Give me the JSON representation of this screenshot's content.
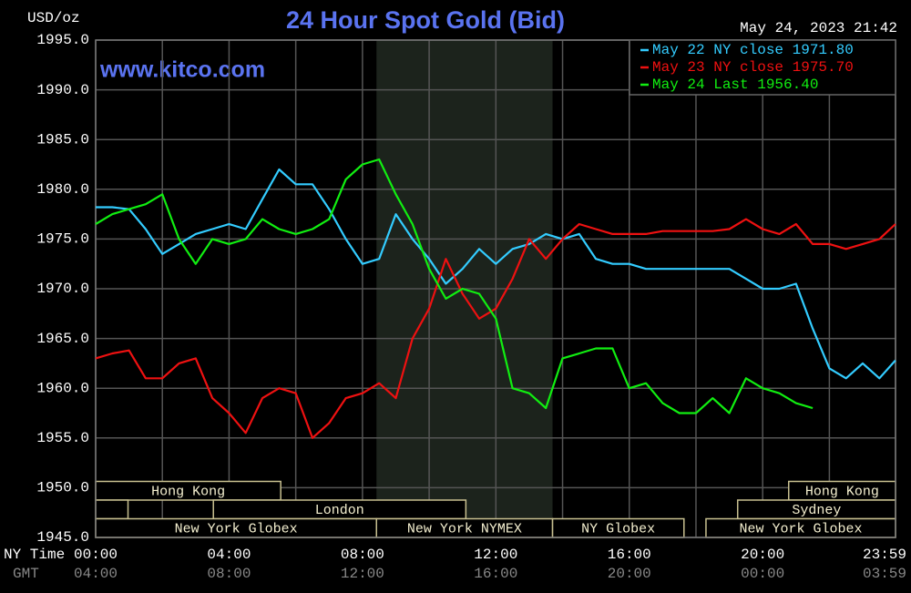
{
  "chart_data": {
    "type": "line",
    "title": "24 Hour Spot Gold (Bid)",
    "y_label": "USD/oz",
    "watermark": "www.kitco.com",
    "timestamp": "May 24, 2023 21:42",
    "x_label": "NY Time",
    "x2_label": "GMT",
    "x": [
      0,
      0.5,
      1,
      1.5,
      2,
      2.5,
      3,
      3.5,
      4,
      4.5,
      5,
      5.5,
      6,
      6.5,
      7,
      7.5,
      8,
      8.5,
      9,
      9.5,
      10,
      10.5,
      11,
      11.5,
      12,
      12.5,
      13,
      13.5,
      14,
      14.5,
      15,
      15.5,
      16,
      16.5,
      17,
      17.5,
      18,
      18.5,
      19,
      19.5,
      20,
      20.5,
      21,
      21.5,
      22,
      22.5,
      23,
      23.5,
      23.98
    ],
    "xlim": [
      0,
      23.983
    ],
    "xticks": [
      {
        "value": 0,
        "label": "00:00"
      },
      {
        "value": 4,
        "label": "04:00"
      },
      {
        "value": 8,
        "label": "08:00"
      },
      {
        "value": 12,
        "label": "12:00"
      },
      {
        "value": 16,
        "label": "16:00"
      },
      {
        "value": 20,
        "label": "20:00"
      },
      {
        "value": 23.983,
        "label": "23:59"
      }
    ],
    "x2_labels": [
      "04:00",
      "08:00",
      "12:00",
      "16:00",
      "20:00",
      "00:00",
      "03:59"
    ],
    "minor_xticks": [
      2,
      6,
      10,
      14,
      18,
      22
    ],
    "ylim": [
      1945,
      1995
    ],
    "yticks": [
      {
        "value": 1945,
        "label": "1945.0"
      },
      {
        "value": 1950,
        "label": "1950.0"
      },
      {
        "value": 1955,
        "label": "1955.0"
      },
      {
        "value": 1960,
        "label": "1960.0"
      },
      {
        "value": 1965,
        "label": "1965.0"
      },
      {
        "value": 1970,
        "label": "1970.0"
      },
      {
        "value": 1975,
        "label": "1975.0"
      },
      {
        "value": 1980,
        "label": "1980.0"
      },
      {
        "value": 1985,
        "label": "1985.0"
      },
      {
        "value": 1990,
        "label": "1990.0"
      },
      {
        "value": 1995,
        "label": "1995.0"
      }
    ],
    "grid": true,
    "legend": "top-right",
    "shade": [
      8.42,
      13.7
    ],
    "series": [
      {
        "name": "May 22 NY close 1971.80",
        "color": "#33ccff",
        "values": [
          1978.2,
          1978.2,
          1978,
          1976,
          1973.5,
          1974.5,
          1975.5,
          1976,
          1976.5,
          1976,
          1979,
          1982,
          1980.5,
          1980.5,
          1978,
          1975,
          1972.5,
          1973,
          1977.5,
          1975,
          1973,
          1970.5,
          1972,
          1974,
          1972.5,
          1974,
          1974.5,
          1975.5,
          1975,
          1975.5,
          1973,
          1972.5,
          1972.5,
          1972,
          1972,
          1972,
          1972,
          1972,
          1972,
          1971,
          1970,
          1970,
          1970.5,
          1966,
          1962,
          1961,
          1962.5,
          1961,
          1962.8
        ]
      },
      {
        "name": "May 23 NY close 1975.70",
        "color": "#ee1111",
        "values": [
          1963,
          1963.5,
          1963.8,
          1961,
          1961,
          1962.5,
          1963,
          1959,
          1957.5,
          1955.5,
          1959,
          1960,
          1959.5,
          1955,
          1956.5,
          1959,
          1959.5,
          1960.5,
          1959,
          1965,
          1968,
          1973,
          1969.5,
          1967,
          1968,
          1971,
          1975,
          1973,
          1975,
          1976.5,
          1976,
          1975.5,
          1975.5,
          1975.5,
          1975.8,
          1975.8,
          1975.8,
          1975.8,
          1976,
          1977,
          1976,
          1975.5,
          1976.5,
          1974.5,
          1974.5,
          1974,
          1974.5,
          1975,
          1976.5
        ]
      },
      {
        "name": "May 24 Last 1956.40",
        "color": "#11ee11",
        "values": [
          1976.5,
          1977.5,
          1978,
          1978.5,
          1979.5,
          1975,
          1972.5,
          1975,
          1974.5,
          1975,
          1977,
          1976,
          1975.5,
          1976,
          1977,
          1981,
          1982.5,
          1983,
          1979.5,
          1976.5,
          1972,
          1969,
          1970,
          1969.5,
          1967,
          1960,
          1959.5,
          1958,
          1963,
          1963.5,
          1964,
          1964,
          1960,
          1960.5,
          1958.5,
          1957.5,
          1957.5,
          1959,
          1957.5,
          1961,
          1960,
          1959.5,
          1958.5,
          1958,
          null,
          null,
          null,
          null,
          null
        ]
      }
    ],
    "session_rows": [
      [
        {
          "label": "Hong Kong",
          "start": 0,
          "end": 5.55
        },
        {
          "label": "Hong Kong",
          "start": 20.78,
          "end": 23.983
        }
      ],
      [
        {
          "start": 0,
          "end": 0.97
        },
        {
          "label": "London",
          "start": 3.53,
          "end": 11.1
        },
        {
          "label": "Sydney",
          "start": 19.25,
          "end": 23.983
        }
      ],
      [
        {
          "label": "New York Globex",
          "start": 0,
          "end": 8.42
        },
        {
          "label": "New York NYMEX",
          "start": 8.42,
          "end": 13.7
        },
        {
          "label": "NY Globex",
          "start": 13.7,
          "end": 17.64
        },
        {
          "label": "New York Globex",
          "start": 18.3,
          "end": 23.983
        }
      ]
    ]
  }
}
